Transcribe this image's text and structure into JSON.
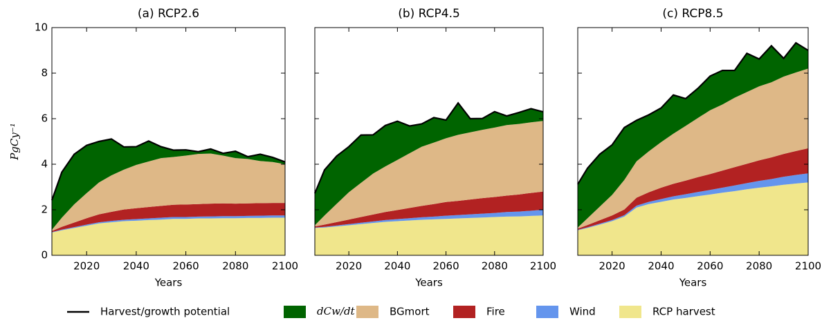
{
  "chart_data": [
    {
      "type": "area",
      "stacked": true,
      "title": "(a) RCP2.6",
      "xlabel": "Years",
      "ylabel": "PgCy⁻¹",
      "xlim": [
        2006,
        2100
      ],
      "xticks": [
        2020,
        2040,
        2060,
        2080,
        2100
      ],
      "ylim": [
        0,
        10
      ],
      "yticks": [
        0,
        2,
        4,
        6,
        8,
        10
      ],
      "show_ytick_labels": true,
      "x": [
        2006,
        2010,
        2015,
        2020,
        2025,
        2030,
        2035,
        2040,
        2045,
        2050,
        2055,
        2060,
        2065,
        2070,
        2075,
        2080,
        2085,
        2090,
        2095,
        2100
      ],
      "series": [
        {
          "name": "Harvest/growth potential",
          "type": "line",
          "color": "#000000",
          "values": [
            2.42,
            3.65,
            4.44,
            4.83,
            5.0,
            5.11,
            4.76,
            4.77,
            5.02,
            4.77,
            4.62,
            4.63,
            4.55,
            4.67,
            4.48,
            4.57,
            4.33,
            4.44,
            4.3,
            4.1
          ]
        },
        {
          "name": "dCw/dt",
          "color": "#006400",
          "values": [
            1.3,
            2.0,
            2.2,
            2.1,
            1.8,
            1.6,
            1.0,
            0.8,
            0.9,
            0.5,
            0.3,
            0.25,
            0.1,
            0.2,
            0.1,
            0.3,
            0.1,
            0.3,
            0.2,
            0.1
          ]
        },
        {
          "name": "BGmort",
          "color": "#deb887",
          "values": [
            0.05,
            0.4,
            0.8,
            1.1,
            1.4,
            1.6,
            1.75,
            1.9,
            2.0,
            2.1,
            2.1,
            2.15,
            2.2,
            2.2,
            2.1,
            2.0,
            1.95,
            1.85,
            1.8,
            1.7
          ]
        },
        {
          "name": "Fire",
          "color": "#b22222",
          "values": [
            0.05,
            0.12,
            0.2,
            0.28,
            0.35,
            0.4,
            0.45,
            0.48,
            0.5,
            0.52,
            0.54,
            0.55,
            0.55,
            0.56,
            0.56,
            0.55,
            0.55,
            0.55,
            0.55,
            0.55
          ]
        },
        {
          "name": "Wind",
          "color": "#6495ed",
          "values": [
            0.02,
            0.03,
            0.04,
            0.05,
            0.05,
            0.06,
            0.06,
            0.07,
            0.07,
            0.08,
            0.08,
            0.08,
            0.08,
            0.09,
            0.09,
            0.09,
            0.09,
            0.1,
            0.1,
            0.1
          ]
        },
        {
          "name": "RCP harvest",
          "color": "#f0e68c",
          "values": [
            1.0,
            1.1,
            1.2,
            1.3,
            1.4,
            1.45,
            1.5,
            1.52,
            1.55,
            1.57,
            1.6,
            1.6,
            1.62,
            1.62,
            1.63,
            1.63,
            1.64,
            1.64,
            1.65,
            1.65
          ]
        }
      ]
    },
    {
      "type": "area",
      "stacked": true,
      "title": "(b) RCP4.5",
      "xlabel": "Years",
      "xlim": [
        2006,
        2100
      ],
      "xticks": [
        2020,
        2040,
        2060,
        2080,
        2100
      ],
      "ylim": [
        0,
        10
      ],
      "yticks": [
        0,
        2,
        4,
        6,
        8,
        10
      ],
      "show_ytick_labels": false,
      "x": [
        2006,
        2010,
        2015,
        2020,
        2025,
        2030,
        2035,
        2040,
        2045,
        2050,
        2055,
        2060,
        2065,
        2070,
        2075,
        2080,
        2085,
        2090,
        2095,
        2100
      ],
      "series": [
        {
          "name": "Harvest/growth potential",
          "type": "line",
          "color": "#000000",
          "values": [
            2.72,
            3.75,
            4.36,
            4.77,
            5.28,
            5.29,
            5.7,
            5.89,
            5.68,
            5.77,
            6.05,
            5.94,
            6.69,
            6.0,
            6.01,
            6.31,
            6.12,
            6.27,
            6.44,
            6.3
          ]
        },
        {
          "name": "dCw/dt",
          "color": "#006400",
          "values": [
            1.4,
            2.0,
            2.1,
            2.0,
            2.1,
            1.7,
            1.8,
            1.7,
            1.2,
            1.0,
            1.1,
            0.8,
            1.4,
            0.6,
            0.5,
            0.7,
            0.4,
            0.5,
            0.6,
            0.4
          ]
        },
        {
          "name": "BGmort",
          "color": "#deb887",
          "values": [
            0.05,
            0.4,
            0.8,
            1.2,
            1.5,
            1.8,
            2.0,
            2.2,
            2.4,
            2.6,
            2.7,
            2.8,
            2.9,
            2.95,
            3.0,
            3.05,
            3.1,
            3.1,
            3.1,
            3.1
          ]
        },
        {
          "name": "Fire",
          "color": "#b22222",
          "values": [
            0.05,
            0.1,
            0.15,
            0.2,
            0.25,
            0.3,
            0.35,
            0.4,
            0.45,
            0.5,
            0.55,
            0.6,
            0.62,
            0.65,
            0.68,
            0.7,
            0.72,
            0.75,
            0.78,
            0.8
          ]
        },
        {
          "name": "Wind",
          "color": "#6495ed",
          "values": [
            0.02,
            0.03,
            0.04,
            0.05,
            0.06,
            0.07,
            0.08,
            0.09,
            0.1,
            0.11,
            0.12,
            0.14,
            0.15,
            0.16,
            0.17,
            0.18,
            0.2,
            0.21,
            0.23,
            0.25
          ]
        },
        {
          "name": "RCP harvest",
          "color": "#f0e68c",
          "values": [
            1.2,
            1.22,
            1.27,
            1.32,
            1.37,
            1.42,
            1.47,
            1.5,
            1.53,
            1.56,
            1.58,
            1.6,
            1.62,
            1.64,
            1.66,
            1.68,
            1.7,
            1.71,
            1.73,
            1.75
          ]
        }
      ]
    },
    {
      "type": "area",
      "stacked": true,
      "title": "(c) RCP8.5",
      "xlabel": "Years",
      "xlim": [
        2006,
        2100
      ],
      "xticks": [
        2020,
        2040,
        2060,
        2080,
        2100
      ],
      "ylim": [
        0,
        10
      ],
      "yticks": [
        0,
        2,
        4,
        6,
        8,
        10
      ],
      "show_ytick_labels": false,
      "x": [
        2006,
        2010,
        2015,
        2020,
        2025,
        2030,
        2035,
        2040,
        2045,
        2050,
        2055,
        2060,
        2065,
        2070,
        2075,
        2080,
        2085,
        2090,
        2095,
        2100
      ],
      "series": [
        {
          "name": "Harvest/growth potential",
          "type": "line",
          "color": "#000000",
          "values": [
            3.12,
            3.83,
            4.44,
            4.85,
            5.61,
            5.93,
            6.17,
            6.47,
            7.04,
            6.88,
            7.33,
            7.87,
            8.12,
            8.12,
            8.87,
            8.62,
            9.2,
            8.65,
            9.33,
            9.0
          ]
        },
        {
          "name": "dCw/dt",
          "color": "#006400",
          "values": [
            1.9,
            2.2,
            2.3,
            2.2,
            2.3,
            1.8,
            1.6,
            1.5,
            1.7,
            1.2,
            1.3,
            1.5,
            1.5,
            1.2,
            1.7,
            1.2,
            1.6,
            0.8,
            1.3,
            0.8
          ]
        },
        {
          "name": "BGmort",
          "color": "#deb887",
          "values": [
            0.05,
            0.3,
            0.6,
            0.9,
            1.3,
            1.6,
            1.8,
            2.0,
            2.2,
            2.4,
            2.6,
            2.8,
            2.9,
            3.05,
            3.15,
            3.25,
            3.3,
            3.4,
            3.45,
            3.5
          ]
        },
        {
          "name": "Fire",
          "color": "#b22222",
          "values": [
            0.05,
            0.1,
            0.15,
            0.2,
            0.25,
            0.35,
            0.42,
            0.5,
            0.55,
            0.6,
            0.65,
            0.7,
            0.75,
            0.8,
            0.85,
            0.9,
            0.95,
            1.0,
            1.05,
            1.1
          ]
        },
        {
          "name": "Wind",
          "color": "#6495ed",
          "values": [
            0.02,
            0.03,
            0.04,
            0.05,
            0.06,
            0.08,
            0.1,
            0.12,
            0.14,
            0.16,
            0.18,
            0.2,
            0.22,
            0.25,
            0.27,
            0.3,
            0.32,
            0.35,
            0.38,
            0.4
          ]
        },
        {
          "name": "RCP harvest",
          "color": "#f0e68c",
          "values": [
            1.1,
            1.2,
            1.35,
            1.5,
            1.7,
            2.1,
            2.25,
            2.35,
            2.45,
            2.52,
            2.6,
            2.67,
            2.75,
            2.82,
            2.9,
            2.97,
            3.03,
            3.1,
            3.15,
            3.2
          ]
        }
      ]
    }
  ]
}
